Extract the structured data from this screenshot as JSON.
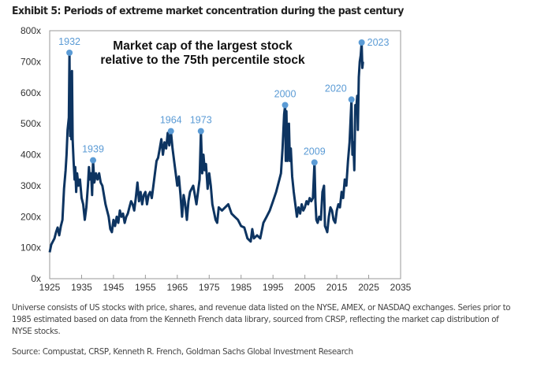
{
  "exhibit_title": "Exhibit 5: Periods of extreme market concentration during the past century",
  "footnote": "Universe consists of US stocks with price, shares, and revenue data listed on the NYSE, AMEX, or NASDAQ exchanges. Series prior to 1985 estimated based on data from the Kenneth French data library, sourced from CRSP, reflecting the market cap distribution of NYSE stocks.",
  "source": "Source: Compustat, CRSP, Kenneth R. French, Goldman Sachs Global Investment Research",
  "chart_data": {
    "type": "line",
    "annotation": [
      "Market cap of the largest stock",
      "relative to the 75th percentile stock"
    ],
    "xlim": [
      1925,
      2035
    ],
    "ylim": [
      0,
      800
    ],
    "x_ticks": [
      "1925",
      "1935",
      "1945",
      "1955",
      "1965",
      "1975",
      "1985",
      "1995",
      "2005",
      "2015",
      "2025",
      "2035"
    ],
    "y_ticks": [
      "0x",
      "100x",
      "200x",
      "300x",
      "400x",
      "500x",
      "600x",
      "700x",
      "800x"
    ],
    "grid": false,
    "line_color": "#0d3461",
    "highlight_color": "#5b9bd5",
    "highlights": [
      {
        "label": "1932",
        "x": 1931.2,
        "y": 729
      },
      {
        "label": "1939",
        "x": 1938.6,
        "y": 382
      },
      {
        "label": "1964",
        "x": 1963.0,
        "y": 476
      },
      {
        "label": "1973",
        "x": 1972.4,
        "y": 476
      },
      {
        "label": "2000",
        "x": 1998.8,
        "y": 560
      },
      {
        "label": "2009",
        "x": 2008.0,
        "y": 375
      },
      {
        "label": "2020",
        "x": 2019.6,
        "y": 578
      },
      {
        "label": "2023",
        "x": 2022.8,
        "y": 762
      }
    ],
    "series": [
      [
        1925,
        85
      ],
      [
        1925.5,
        110
      ],
      [
        1926,
        120
      ],
      [
        1926.5,
        130
      ],
      [
        1927,
        150
      ],
      [
        1927.5,
        165
      ],
      [
        1928,
        140
      ],
      [
        1928.5,
        170
      ],
      [
        1929,
        190
      ],
      [
        1929.5,
        290
      ],
      [
        1930,
        350
      ],
      [
        1930.3,
        400
      ],
      [
        1930.6,
        480
      ],
      [
        1931,
        520
      ],
      [
        1931.2,
        729
      ],
      [
        1931.4,
        460
      ],
      [
        1931.6,
        660
      ],
      [
        1931.8,
        450
      ],
      [
        1932,
        670
      ],
      [
        1932.2,
        450
      ],
      [
        1932.5,
        380
      ],
      [
        1932.8,
        320
      ],
      [
        1933,
        360
      ],
      [
        1933.3,
        280
      ],
      [
        1933.6,
        340
      ],
      [
        1934,
        300
      ],
      [
        1934.5,
        320
      ],
      [
        1935,
        260
      ],
      [
        1935.5,
        240
      ],
      [
        1936,
        190
      ],
      [
        1936.5,
        230
      ],
      [
        1937,
        300
      ],
      [
        1937.3,
        360
      ],
      [
        1937.6,
        320
      ],
      [
        1938,
        340
      ],
      [
        1938.3,
        270
      ],
      [
        1938.6,
        382
      ],
      [
        1939,
        310
      ],
      [
        1939.5,
        340
      ],
      [
        1940,
        320
      ],
      [
        1940.5,
        340
      ],
      [
        1941,
        310
      ],
      [
        1941.5,
        300
      ],
      [
        1942,
        270
      ],
      [
        1942.5,
        240
      ],
      [
        1943,
        220
      ],
      [
        1943.5,
        200
      ],
      [
        1944,
        160
      ],
      [
        1944.5,
        150
      ],
      [
        1945,
        190
      ],
      [
        1945.5,
        170
      ],
      [
        1946,
        200
      ],
      [
        1946.5,
        180
      ],
      [
        1947,
        220
      ],
      [
        1947.5,
        200
      ],
      [
        1948,
        210
      ],
      [
        1948.5,
        180
      ],
      [
        1949,
        200
      ],
      [
        1949.5,
        210
      ],
      [
        1950,
        230
      ],
      [
        1950.5,
        250
      ],
      [
        1951,
        240
      ],
      [
        1951.5,
        220
      ],
      [
        1952,
        260
      ],
      [
        1952.5,
        310
      ],
      [
        1953,
        250
      ],
      [
        1953.5,
        280
      ],
      [
        1954,
        240
      ],
      [
        1954.5,
        270
      ],
      [
        1955,
        280
      ],
      [
        1955.5,
        240
      ],
      [
        1956,
        270
      ],
      [
        1956.5,
        280
      ],
      [
        1957,
        260
      ],
      [
        1957.5,
        300
      ],
      [
        1958,
        340
      ],
      [
        1958.5,
        380
      ],
      [
        1959,
        390
      ],
      [
        1959.5,
        420
      ],
      [
        1960,
        450
      ],
      [
        1960.5,
        400
      ],
      [
        1961,
        440
      ],
      [
        1961.5,
        420
      ],
      [
        1962,
        470
      ],
      [
        1962.5,
        430
      ],
      [
        1963,
        476
      ],
      [
        1963.5,
        420
      ],
      [
        1964,
        380
      ],
      [
        1964.5,
        340
      ],
      [
        1965,
        300
      ],
      [
        1965.5,
        330
      ],
      [
        1966,
        270
      ],
      [
        1966.5,
        200
      ],
      [
        1967,
        270
      ],
      [
        1967.5,
        240
      ],
      [
        1968,
        190
      ],
      [
        1968.5,
        250
      ],
      [
        1969,
        280
      ],
      [
        1969.5,
        290
      ],
      [
        1970,
        300
      ],
      [
        1970.5,
        270
      ],
      [
        1971,
        240
      ],
      [
        1971.5,
        280
      ],
      [
        1972,
        320
      ],
      [
        1972.4,
        476
      ],
      [
        1972.8,
        340
      ],
      [
        1973.2,
        400
      ],
      [
        1973.6,
        350
      ],
      [
        1974,
        370
      ],
      [
        1974.5,
        290
      ],
      [
        1975,
        340
      ],
      [
        1975.5,
        300
      ],
      [
        1976,
        240
      ],
      [
        1977,
        190
      ],
      [
        1977.5,
        180
      ],
      [
        1978,
        230
      ],
      [
        1979,
        220
      ],
      [
        1980,
        230
      ],
      [
        1981,
        240
      ],
      [
        1982,
        210
      ],
      [
        1983,
        200
      ],
      [
        1984,
        190
      ],
      [
        1985,
        170
      ],
      [
        1986,
        165
      ],
      [
        1987,
        130
      ],
      [
        1988,
        120
      ],
      [
        1988.5,
        160
      ],
      [
        1989,
        130
      ],
      [
        1990,
        140
      ],
      [
        1991,
        130
      ],
      [
        1992,
        180
      ],
      [
        1993,
        200
      ],
      [
        1994,
        220
      ],
      [
        1995,
        250
      ],
      [
        1996,
        280
      ],
      [
        1997,
        320
      ],
      [
        1997.5,
        340
      ],
      [
        1998,
        420
      ],
      [
        1998.5,
        530
      ],
      [
        1998.8,
        560
      ],
      [
        1999,
        380
      ],
      [
        1999.2,
        540
      ],
      [
        1999.5,
        380
      ],
      [
        2000,
        500
      ],
      [
        2000.3,
        380
      ],
      [
        2000.6,
        420
      ],
      [
        2001,
        330
      ],
      [
        2001.5,
        280
      ],
      [
        2002,
        240
      ],
      [
        2002.5,
        200
      ],
      [
        2003,
        230
      ],
      [
        2003.5,
        210
      ],
      [
        2004,
        240
      ],
      [
        2004.5,
        220
      ],
      [
        2005,
        230
      ],
      [
        2005.5,
        250
      ],
      [
        2006,
        240
      ],
      [
        2006.5,
        260
      ],
      [
        2007,
        250
      ],
      [
        2007.5,
        260
      ],
      [
        2008,
        375
      ],
      [
        2008.3,
        250
      ],
      [
        2008.6,
        190
      ],
      [
        2009,
        180
      ],
      [
        2009.5,
        200
      ],
      [
        2010,
        190
      ],
      [
        2010.5,
        280
      ],
      [
        2011,
        300
      ],
      [
        2011.3,
        170
      ],
      [
        2011.7,
        160
      ],
      [
        2012,
        150
      ],
      [
        2012.5,
        200
      ],
      [
        2013,
        230
      ],
      [
        2013.5,
        220
      ],
      [
        2014,
        190
      ],
      [
        2014.5,
        180
      ],
      [
        2015,
        220
      ],
      [
        2015.5,
        240
      ],
      [
        2016,
        230
      ],
      [
        2016.5,
        280
      ],
      [
        2017,
        260
      ],
      [
        2017.5,
        320
      ],
      [
        2018,
        300
      ],
      [
        2018.5,
        380
      ],
      [
        2019,
        440
      ],
      [
        2019.6,
        578
      ],
      [
        2019.9,
        400
      ],
      [
        2020.2,
        440
      ],
      [
        2020.5,
        350
      ],
      [
        2020.8,
        560
      ],
      [
        2021.1,
        550
      ],
      [
        2021.4,
        590
      ],
      [
        2021.6,
        480
      ],
      [
        2021.9,
        650
      ],
      [
        2022.2,
        700
      ],
      [
        2022.5,
        720
      ],
      [
        2022.8,
        762
      ],
      [
        2023,
        680
      ],
      [
        2023.2,
        700
      ]
    ]
  }
}
